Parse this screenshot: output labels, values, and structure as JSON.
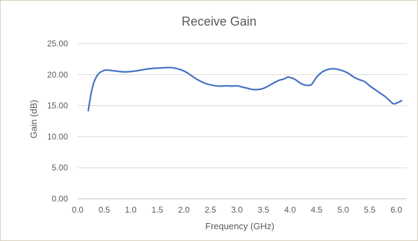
{
  "chart_data": {
    "type": "line",
    "title": "Receive Gain",
    "xlabel": "Frequency (GHz)",
    "ylabel": "Gain (dB)",
    "xlim": [
      0.0,
      6.2
    ],
    "ylim": [
      0.0,
      25.0
    ],
    "x_ticks": [
      "0.0",
      "0.5",
      "1.0",
      "1.5",
      "2.0",
      "2.5",
      "3.0",
      "3.5",
      "4.0",
      "4.5",
      "5.0",
      "5.5",
      "6.0"
    ],
    "y_ticks": [
      "0.00",
      "5.00",
      "10.00",
      "15.00",
      "20.00",
      "25.00"
    ],
    "grid": "horizontal",
    "legend": "none",
    "line_color": "#4472c4",
    "grid_color": "#d9d9d9",
    "series": [
      {
        "x": [
          0.2,
          0.25,
          0.3,
          0.35,
          0.4,
          0.45,
          0.5,
          0.55,
          0.6,
          0.7,
          0.8,
          0.9,
          1.0,
          1.1,
          1.2,
          1.3,
          1.4,
          1.5,
          1.6,
          1.7,
          1.8,
          1.9,
          2.0,
          2.1,
          2.2,
          2.3,
          2.4,
          2.5,
          2.6,
          2.7,
          2.8,
          2.9,
          3.0,
          3.1,
          3.2,
          3.3,
          3.4,
          3.5,
          3.6,
          3.7,
          3.8,
          3.9,
          3.95,
          4.0,
          4.1,
          4.2,
          4.3,
          4.4,
          4.5,
          4.6,
          4.7,
          4.8,
          4.9,
          5.0,
          5.1,
          5.2,
          5.3,
          5.4,
          5.5,
          5.6,
          5.7,
          5.8,
          5.9,
          5.95,
          6.0,
          6.1
        ],
        "y": [
          14.2,
          16.8,
          18.6,
          19.6,
          20.2,
          20.5,
          20.7,
          20.75,
          20.7,
          20.6,
          20.5,
          20.45,
          20.5,
          20.6,
          20.75,
          20.9,
          21.0,
          21.05,
          21.1,
          21.15,
          21.1,
          20.9,
          20.6,
          20.1,
          19.5,
          19.0,
          18.6,
          18.35,
          18.2,
          18.15,
          18.2,
          18.15,
          18.2,
          18.0,
          17.8,
          17.6,
          17.6,
          17.8,
          18.2,
          18.7,
          19.1,
          19.35,
          19.6,
          19.55,
          19.2,
          18.6,
          18.3,
          18.4,
          19.6,
          20.4,
          20.8,
          20.95,
          20.85,
          20.6,
          20.2,
          19.6,
          19.2,
          18.9,
          18.2,
          17.6,
          17.0,
          16.4,
          15.6,
          15.3,
          15.4,
          15.8
        ]
      }
    ]
  }
}
